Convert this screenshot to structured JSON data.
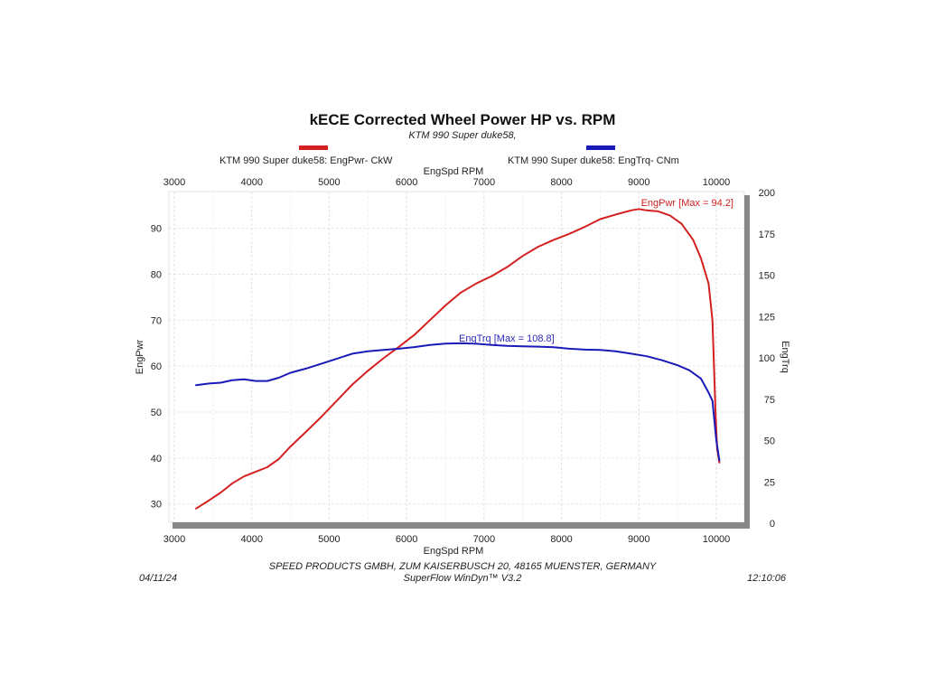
{
  "chart_data": {
    "type": "line",
    "title": "kECE Corrected Wheel Power HP vs. RPM",
    "subtitle": "KTM 990 Super duke58,",
    "xlabel": "EngSpd  RPM",
    "ylabel_left": "EngPwr",
    "ylabel_right": "EngTrq",
    "xlim": [
      3000,
      10400
    ],
    "ylim_left": [
      26,
      98
    ],
    "ylim_right": [
      0,
      200
    ],
    "x_ticks": [
      3000,
      4000,
      5000,
      6000,
      7000,
      8000,
      9000,
      10000
    ],
    "y_left_ticks": [
      30,
      40,
      50,
      60,
      70,
      80,
      90
    ],
    "y_right_ticks": [
      0,
      25,
      50,
      75,
      100,
      125,
      150,
      175,
      200
    ],
    "grid": true,
    "legend_position": "top",
    "series": [
      {
        "name": "KTM 990 Super duke58: EngPwr- CkW",
        "axis": "left",
        "color": "#d42020",
        "annotation": "EngPwr [Max = 94.2]",
        "x": [
          3280,
          3450,
          3600,
          3750,
          3900,
          4050,
          4200,
          4350,
          4500,
          4700,
          4900,
          5100,
          5300,
          5500,
          5700,
          5900,
          6100,
          6300,
          6500,
          6700,
          6900,
          7100,
          7300,
          7500,
          7700,
          7900,
          8100,
          8300,
          8500,
          8700,
          8900,
          9000,
          9100,
          9250,
          9400,
          9550,
          9700,
          9800,
          9900,
          9950,
          9970,
          9990,
          10010,
          10040
        ],
        "y": [
          29.0,
          30.8,
          32.5,
          34.5,
          36.0,
          37.0,
          38.0,
          39.8,
          42.5,
          45.7,
          49.0,
          52.5,
          56.0,
          59.0,
          61.7,
          64.2,
          66.8,
          70.0,
          73.2,
          76.0,
          78.0,
          79.6,
          81.6,
          84.0,
          86.0,
          87.5,
          88.8,
          90.3,
          92.0,
          93.0,
          93.9,
          94.2,
          93.9,
          93.7,
          92.8,
          91.0,
          87.5,
          83.5,
          78.0,
          70.0,
          60.0,
          50.0,
          42.0,
          39.0
        ]
      },
      {
        "name": "KTM 990 Super duke58: EngTrq- CNm",
        "axis": "right",
        "color": "#1a1ab8",
        "annotation": "EngTrq [Max = 108.8]",
        "x": [
          3280,
          3450,
          3600,
          3750,
          3900,
          4050,
          4200,
          4350,
          4500,
          4700,
          4900,
          5100,
          5300,
          5500,
          5700,
          5900,
          6100,
          6300,
          6500,
          6700,
          6900,
          7100,
          7300,
          7500,
          7700,
          7900,
          8100,
          8300,
          8500,
          8700,
          8900,
          9100,
          9300,
          9500,
          9650,
          9800,
          9900,
          9950,
          10000,
          10040
        ],
        "y": [
          83.5,
          84.5,
          85.0,
          86.5,
          87.0,
          86.0,
          86.0,
          88.0,
          91.0,
          93.5,
          96.5,
          99.5,
          102.5,
          104.0,
          104.8,
          105.5,
          106.5,
          107.8,
          108.6,
          108.8,
          108.5,
          107.8,
          107.2,
          107.0,
          106.8,
          106.4,
          105.5,
          105.0,
          104.8,
          104.0,
          102.5,
          101.0,
          98.5,
          95.5,
          92.5,
          87.5,
          79.0,
          74.0,
          50.0,
          38.0
        ]
      }
    ]
  },
  "footer": {
    "date": "04/11/24",
    "company": "SPEED PRODUCTS GMBH, ZUM KAISERBUSCH 20, 48165 MUENSTER, GERMANY",
    "software": "SuperFlow WinDyn™ V3.2",
    "time": "12:10:06"
  }
}
